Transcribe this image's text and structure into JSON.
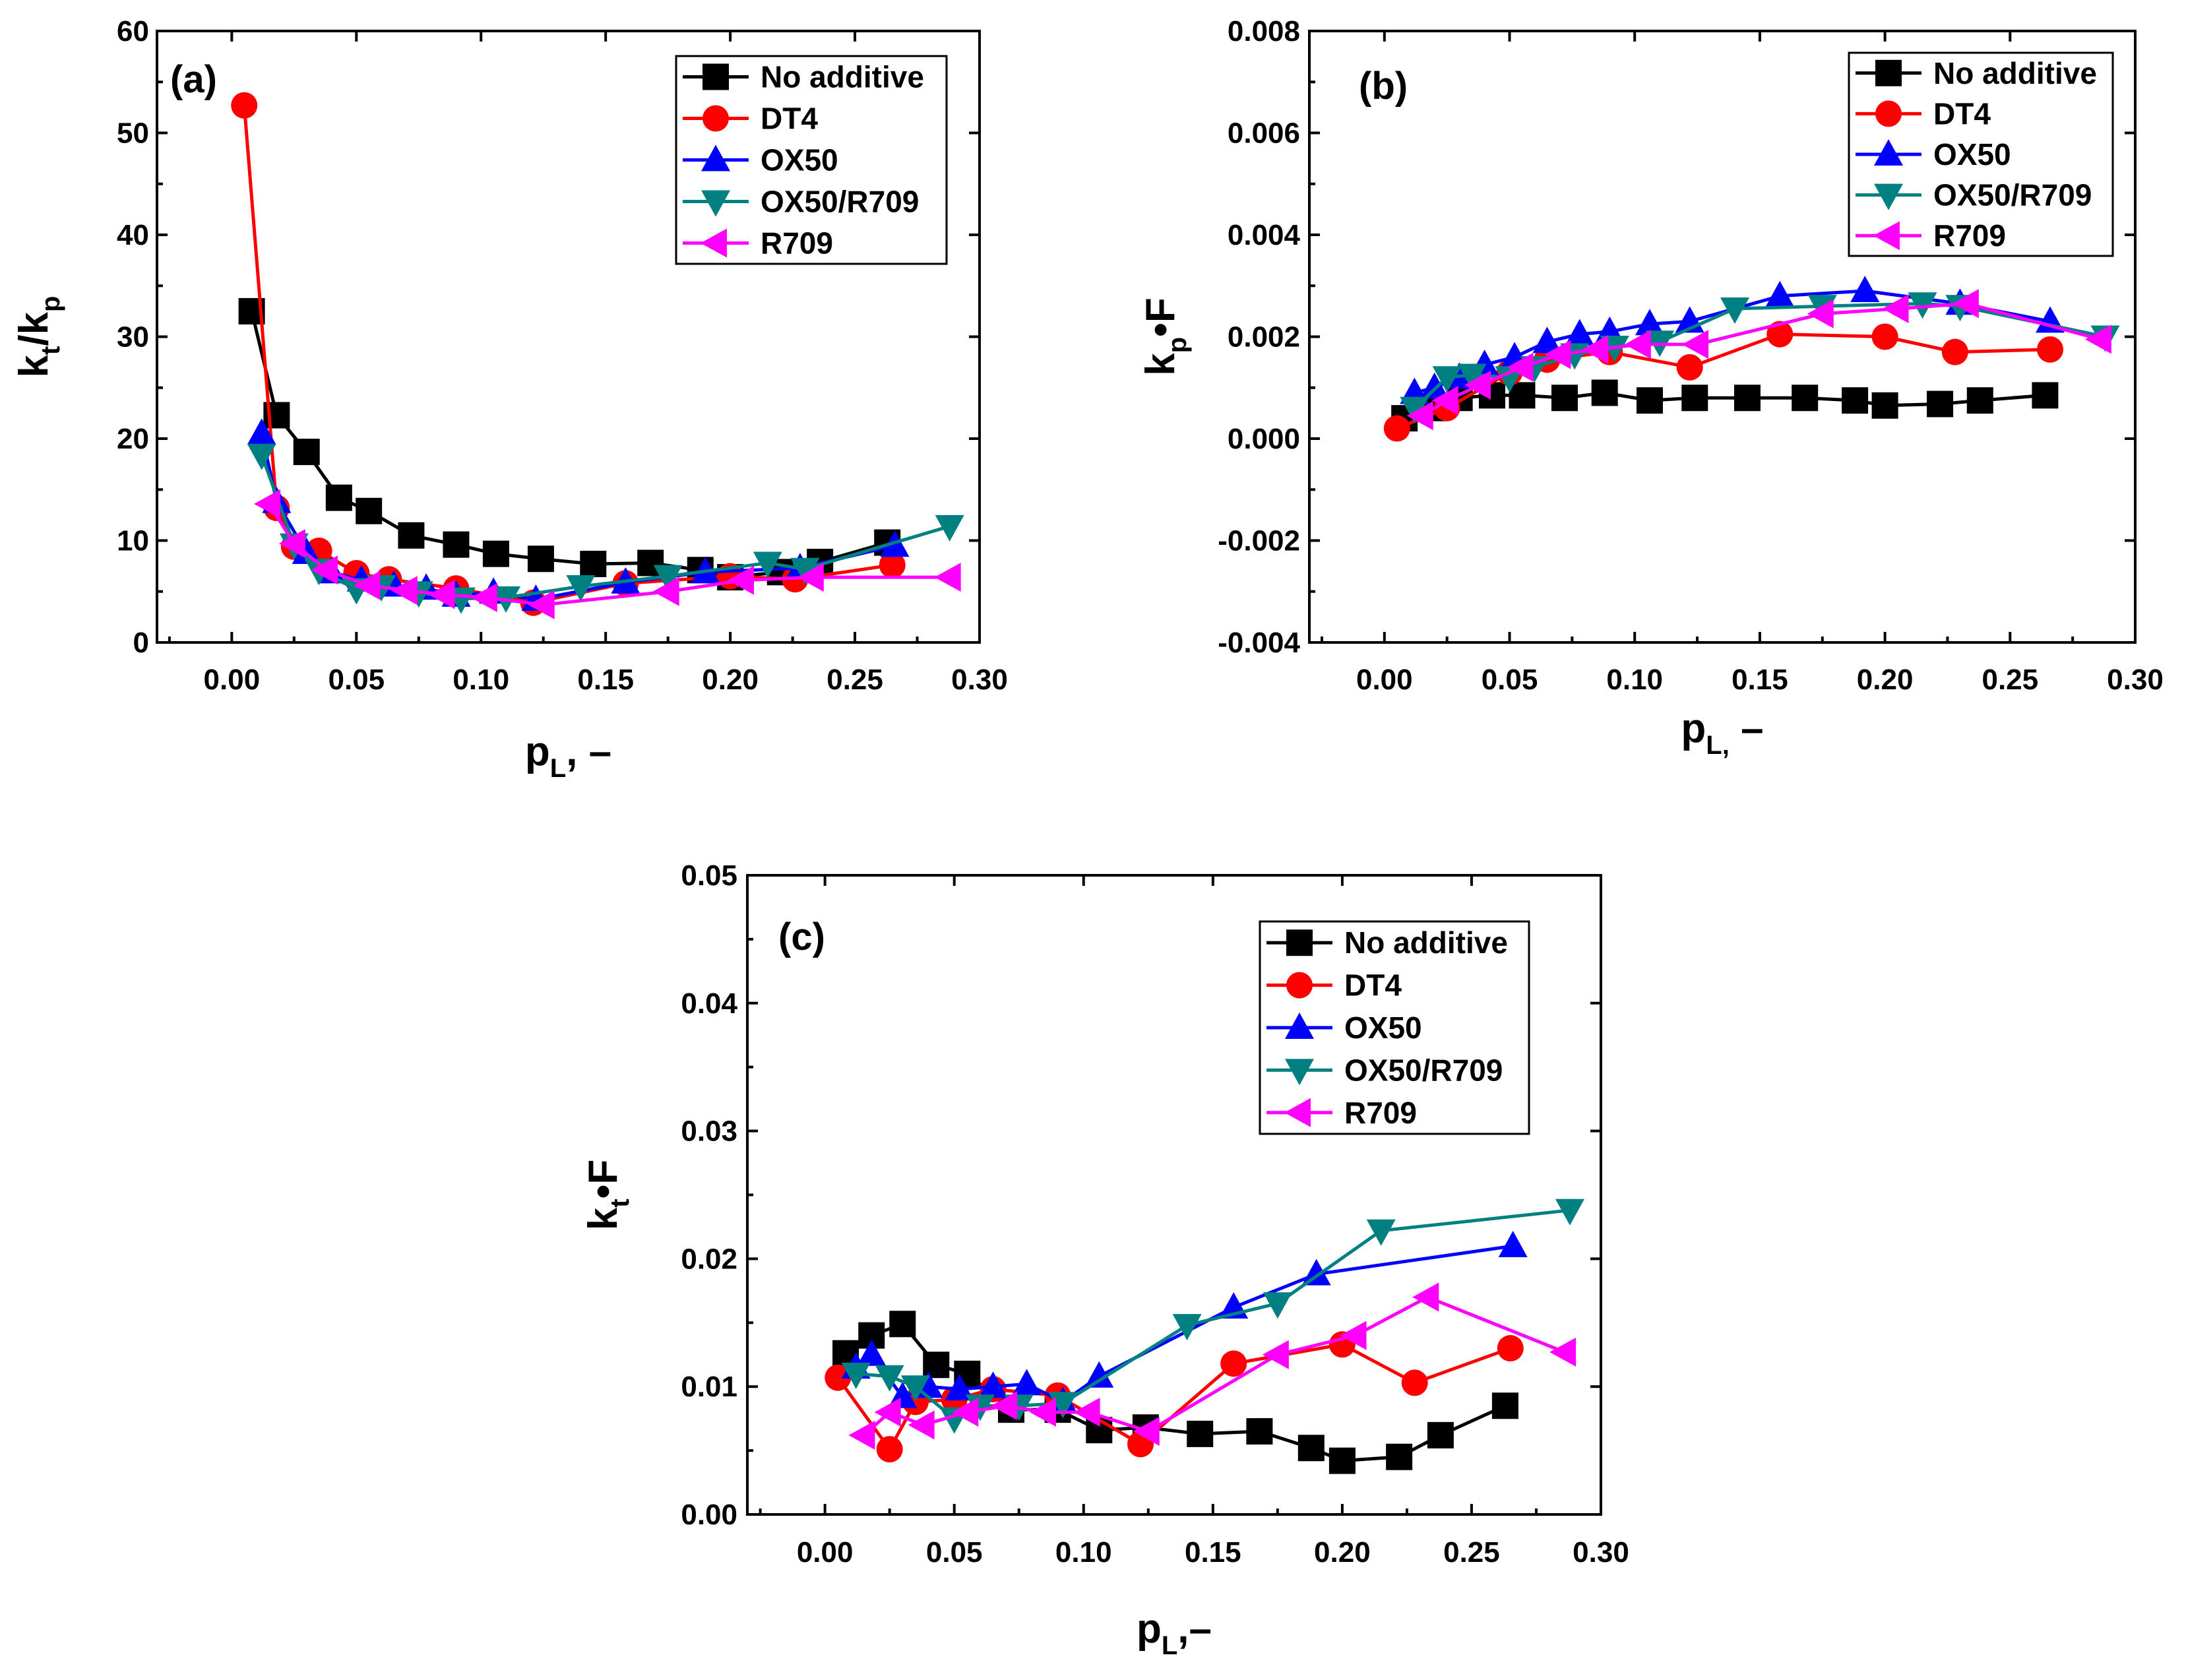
{
  "chart_data": [
    {
      "type": "line",
      "panel_label": "(a)",
      "ylabel_main": "k",
      "ylabel_sub1": "t",
      "ylabel_mid": "/k",
      "ylabel_sub2": "p",
      "xlabel_main": "p",
      "xlabel_sub": "L",
      "xlabel_suffix": ", –",
      "xlim": [
        -0.03,
        0.3
      ],
      "ylim": [
        0,
        60
      ],
      "xticks": [
        0.0,
        0.05,
        0.1,
        0.15,
        0.2,
        0.25,
        0.3
      ],
      "xtick_labels": [
        "0.00",
        "0.05",
        "0.10",
        "0.15",
        "0.20",
        "0.25",
        "0.30"
      ],
      "yticks": [
        0,
        10,
        20,
        30,
        40,
        50,
        60
      ],
      "ytick_labels": [
        "0",
        "10",
        "20",
        "30",
        "40",
        "50",
        "60"
      ],
      "legend_position": "top-right",
      "series": [
        {
          "name": "No additive",
          "marker": "square",
          "color": "#000000",
          "x": [
            0.008,
            0.018,
            0.03,
            0.043,
            0.055,
            0.072,
            0.09,
            0.106,
            0.124,
            0.145,
            0.168,
            0.188,
            0.2,
            0.22,
            0.236,
            0.263
          ],
          "y": [
            32.5,
            22.3,
            18.7,
            14.2,
            12.9,
            10.5,
            9.6,
            8.7,
            8.2,
            7.7,
            7.8,
            7.1,
            6.4,
            6.9,
            7.9,
            9.8
          ]
        },
        {
          "name": "DT4",
          "marker": "circle",
          "color": "#ff0000",
          "x": [
            0.005,
            0.018,
            0.025,
            0.035,
            0.05,
            0.063,
            0.09,
            0.121,
            0.158,
            0.2,
            0.226,
            0.265
          ],
          "y": [
            52.7,
            13.2,
            9.4,
            9.0,
            6.8,
            6.2,
            5.3,
            3.9,
            5.8,
            6.5,
            6.2,
            7.6
          ]
        },
        {
          "name": "OX50",
          "marker": "triangle-up",
          "color": "#0000ff",
          "x": [
            0.012,
            0.018,
            0.03,
            0.04,
            0.052,
            0.065,
            0.078,
            0.09,
            0.105,
            0.122,
            0.158,
            0.19,
            0.228,
            0.266
          ],
          "y": [
            20.5,
            13.8,
            8.8,
            6.9,
            6.1,
            5.6,
            5.3,
            4.6,
            4.9,
            4.2,
            5.9,
            6.9,
            7.3,
            9.5
          ]
        },
        {
          "name": "OX50/R709",
          "marker": "triangle-down",
          "color": "#008080",
          "x": [
            0.012,
            0.025,
            0.035,
            0.05,
            0.06,
            0.075,
            0.092,
            0.11,
            0.14,
            0.175,
            0.215,
            0.23,
            0.288
          ],
          "y": [
            18.4,
            9.6,
            7.1,
            5.2,
            5.5,
            4.9,
            4.3,
            4.4,
            5.5,
            6.5,
            7.8,
            7.2,
            11.4
          ]
        },
        {
          "name": "R709",
          "marker": "triangle-left",
          "color": "#ff00ff",
          "x": [
            0.015,
            0.025,
            0.038,
            0.055,
            0.07,
            0.085,
            0.102,
            0.125,
            0.175,
            0.205,
            0.233,
            0.288
          ],
          "y": [
            13.6,
            9.7,
            7.1,
            5.6,
            5.1,
            4.7,
            4.4,
            3.7,
            5.0,
            6.1,
            6.4,
            6.4
          ]
        }
      ]
    },
    {
      "type": "line",
      "panel_label": "(b)",
      "ylabel_main": "k",
      "ylabel_sub1": "p",
      "ylabel_mid": "•F",
      "ylabel_sub2": "",
      "xlabel_main": "p",
      "xlabel_sub": "L,",
      "xlabel_suffix": " –",
      "xlim": [
        -0.03,
        0.3
      ],
      "ylim": [
        -0.004,
        0.008
      ],
      "xticks": [
        0.0,
        0.05,
        0.1,
        0.15,
        0.2,
        0.25,
        0.3
      ],
      "xtick_labels": [
        "0.00",
        "0.05",
        "0.10",
        "0.15",
        "0.20",
        "0.25",
        "0.30"
      ],
      "yticks": [
        -0.004,
        -0.002,
        0.0,
        0.002,
        0.004,
        0.006,
        0.008
      ],
      "ytick_labels": [
        "-0.004",
        "-0.002",
        "0.000",
        "0.002",
        "0.004",
        "0.006",
        "0.008"
      ],
      "legend_position": "top-right",
      "series": [
        {
          "name": "No additive",
          "marker": "square",
          "color": "#000000",
          "x": [
            0.008,
            0.02,
            0.03,
            0.043,
            0.055,
            0.072,
            0.088,
            0.106,
            0.124,
            0.145,
            0.168,
            0.188,
            0.2,
            0.222,
            0.238,
            0.264
          ],
          "y": [
            0.0004,
            0.0006,
            0.0008,
            0.00085,
            0.00085,
            0.0008,
            0.0009,
            0.00075,
            0.0008,
            0.0008,
            0.0008,
            0.00075,
            0.00065,
            0.00068,
            0.00075,
            0.00085
          ]
        },
        {
          "name": "DT4",
          "marker": "circle",
          "color": "#ff0000",
          "x": [
            0.005,
            0.025,
            0.05,
            0.065,
            0.09,
            0.122,
            0.158,
            0.2,
            0.228,
            0.266
          ],
          "y": [
            0.0002,
            0.0006,
            0.0013,
            0.00155,
            0.0017,
            0.0014,
            0.00205,
            0.002,
            0.0017,
            0.00175
          ]
        },
        {
          "name": "OX50",
          "marker": "triangle-up",
          "color": "#0000ff",
          "x": [
            0.012,
            0.02,
            0.03,
            0.04,
            0.052,
            0.065,
            0.078,
            0.09,
            0.106,
            0.122,
            0.158,
            0.192,
            0.23,
            0.266
          ],
          "y": [
            0.0009,
            0.001,
            0.0012,
            0.00145,
            0.0016,
            0.0019,
            0.00205,
            0.0021,
            0.00225,
            0.0023,
            0.0028,
            0.0029,
            0.00265,
            0.0023
          ]
        },
        {
          "name": "OX50/R709",
          "marker": "triangle-down",
          "color": "#008080",
          "x": [
            0.012,
            0.025,
            0.035,
            0.05,
            0.06,
            0.076,
            0.092,
            0.11,
            0.14,
            0.175,
            0.215,
            0.23,
            0.288
          ],
          "y": [
            0.0006,
            0.0012,
            0.00125,
            0.0012,
            0.0014,
            0.00165,
            0.0018,
            0.0019,
            0.00255,
            0.0026,
            0.00265,
            0.0026,
            0.002
          ]
        },
        {
          "name": "R709",
          "marker": "triangle-left",
          "color": "#ff00ff",
          "x": [
            0.015,
            0.025,
            0.038,
            0.055,
            0.07,
            0.085,
            0.102,
            0.125,
            0.175,
            0.205,
            0.233,
            0.286
          ],
          "y": [
            0.00045,
            0.00075,
            0.00105,
            0.0014,
            0.00165,
            0.00175,
            0.00185,
            0.00185,
            0.00245,
            0.00255,
            0.00265,
            0.00195
          ]
        }
      ]
    },
    {
      "type": "line",
      "panel_label": "(c)",
      "ylabel_main": "k",
      "ylabel_sub1": "t",
      "ylabel_mid": "•F",
      "ylabel_sub2": "",
      "xlabel_main": "p",
      "xlabel_sub": "L",
      "xlabel_suffix": ",–",
      "xlim": [
        -0.03,
        0.3
      ],
      "ylim": [
        0.0,
        0.05
      ],
      "xticks": [
        0.0,
        0.05,
        0.1,
        0.15,
        0.2,
        0.25,
        0.3
      ],
      "xtick_labels": [
        "0.00",
        "0.05",
        "0.10",
        "0.15",
        "0.20",
        "0.25",
        "0.30"
      ],
      "yticks": [
        0.0,
        0.01,
        0.02,
        0.03,
        0.04,
        0.05
      ],
      "ytick_labels": [
        "0.00",
        "0.01",
        "0.02",
        "0.03",
        "0.04",
        "0.05"
      ],
      "legend_position": "top-right",
      "series": [
        {
          "name": "No additive",
          "marker": "square",
          "color": "#000000",
          "x": [
            0.008,
            0.018,
            0.03,
            0.043,
            0.055,
            0.072,
            0.09,
            0.106,
            0.124,
            0.145,
            0.168,
            0.188,
            0.2,
            0.222,
            0.238,
            0.263
          ],
          "y": [
            0.0126,
            0.014,
            0.0149,
            0.0117,
            0.011,
            0.0082,
            0.0082,
            0.0066,
            0.0068,
            0.0063,
            0.0065,
            0.0052,
            0.0042,
            0.0045,
            0.0062,
            0.0085
          ]
        },
        {
          "name": "DT4",
          "marker": "circle",
          "color": "#ff0000",
          "x": [
            0.005,
            0.025,
            0.035,
            0.05,
            0.065,
            0.09,
            0.122,
            0.158,
            0.2,
            0.228,
            0.265
          ],
          "y": [
            0.0107,
            0.0051,
            0.0088,
            0.009,
            0.0098,
            0.0093,
            0.0055,
            0.0118,
            0.0133,
            0.0103,
            0.013
          ]
        },
        {
          "name": "OX50",
          "marker": "triangle-up",
          "color": "#0000ff",
          "x": [
            0.012,
            0.018,
            0.03,
            0.04,
            0.052,
            0.065,
            0.078,
            0.092,
            0.106,
            0.158,
            0.19,
            0.266
          ],
          "y": [
            0.0115,
            0.0125,
            0.0092,
            0.01,
            0.0098,
            0.01,
            0.0102,
            0.0088,
            0.0108,
            0.0162,
            0.0188,
            0.021
          ]
        },
        {
          "name": "OX50/R709",
          "marker": "triangle-down",
          "color": "#008080",
          "x": [
            0.012,
            0.025,
            0.035,
            0.05,
            0.06,
            0.075,
            0.092,
            0.14,
            0.175,
            0.215,
            0.288
          ],
          "y": [
            0.011,
            0.0108,
            0.01,
            0.0075,
            0.0085,
            0.0085,
            0.0087,
            0.0148,
            0.0165,
            0.0222,
            0.0238
          ]
        },
        {
          "name": "R709",
          "marker": "triangle-left",
          "color": "#ff00ff",
          "x": [
            0.015,
            0.025,
            0.038,
            0.055,
            0.07,
            0.085,
            0.102,
            0.125,
            0.175,
            0.205,
            0.233,
            0.286
          ],
          "y": [
            0.0062,
            0.008,
            0.007,
            0.008,
            0.0085,
            0.008,
            0.008,
            0.0065,
            0.0125,
            0.014,
            0.017,
            0.0127
          ]
        }
      ]
    }
  ]
}
